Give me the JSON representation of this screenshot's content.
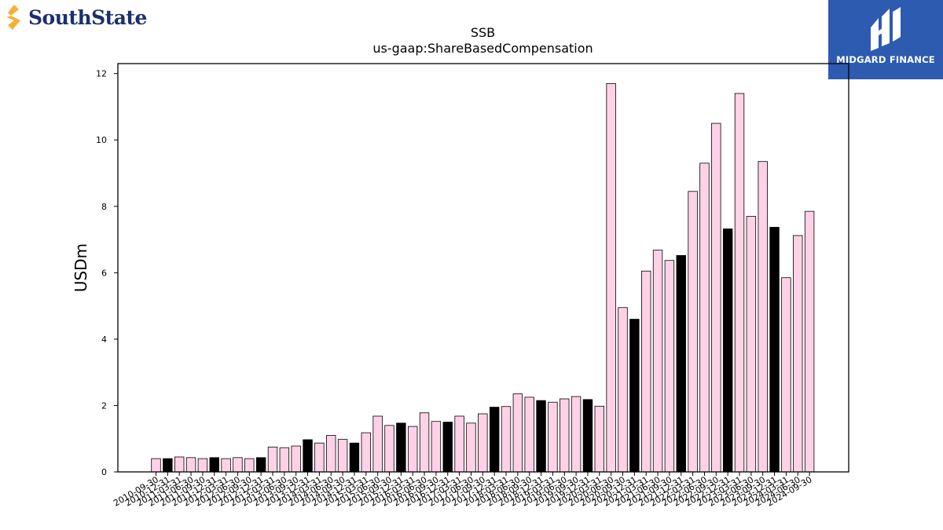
{
  "logos": {
    "left": {
      "name": "SouthState",
      "icon": "southstate-s-icon",
      "color": "#1b2f6e",
      "accent": "#f2b233"
    },
    "right": {
      "name": "MIDGARD FINANCE",
      "icon": "midgard-m-icon",
      "background": "#2d5bb0"
    }
  },
  "chart_data": {
    "type": "bar",
    "title": "SSB",
    "subtitle": "us-gaap:ShareBasedCompensation",
    "xlabel": "",
    "ylabel": "USDm",
    "ylim": [
      0,
      12.3
    ],
    "yticks": [
      0,
      2,
      4,
      6,
      8,
      10,
      12
    ],
    "colors": {
      "quarter": "#ffd1e6",
      "fiscal_q3": "#000000",
      "edge": "#000000"
    },
    "categories": [
      "2010-09-30",
      "2010-12-31",
      "2011-03-31",
      "2011-06-30",
      "2011-09-30",
      "2011-12-31",
      "2012-03-31",
      "2012-06-30",
      "2012-09-30",
      "2012-12-31",
      "2013-03-31",
      "2013-06-30",
      "2013-09-30",
      "2013-12-31",
      "2014-03-31",
      "2014-06-30",
      "2014-09-30",
      "2014-12-31",
      "2015-03-31",
      "2015-06-30",
      "2015-09-30",
      "2015-12-31",
      "2016-03-31",
      "2016-06-30",
      "2016-09-30",
      "2016-12-31",
      "2017-03-31",
      "2017-06-30",
      "2017-09-30",
      "2017-12-31",
      "2018-03-31",
      "2018-06-30",
      "2018-09-30",
      "2018-12-31",
      "2019-03-31",
      "2019-06-30",
      "2019-09-30",
      "2019-12-31",
      "2020-03-31",
      "2020-06-30",
      "2020-09-30",
      "2020-12-31",
      "2021-03-31",
      "2021-06-30",
      "2021-09-30",
      "2021-12-31",
      "2022-03-31",
      "2022-06-30",
      "2022-09-30",
      "2022-12-31",
      "2023-03-31",
      "2023-06-30",
      "2023-09-30",
      "2023-12-31",
      "2024-03-31",
      "2024-06-30",
      "2024-09-30"
    ],
    "values": [
      0.4,
      0.4,
      0.45,
      0.43,
      0.4,
      0.43,
      0.4,
      0.43,
      0.4,
      0.43,
      0.75,
      0.73,
      0.78,
      0.97,
      0.87,
      1.1,
      0.98,
      0.87,
      1.18,
      1.68,
      1.4,
      1.47,
      1.37,
      1.78,
      1.52,
      1.5,
      1.68,
      1.47,
      1.75,
      1.95,
      1.97,
      2.35,
      2.25,
      2.15,
      2.1,
      2.2,
      2.27,
      2.18,
      1.98,
      11.7,
      4.95,
      4.6,
      6.05,
      6.68,
      6.37,
      6.52,
      8.45,
      9.3,
      10.5,
      7.32,
      11.4,
      7.7,
      9.35,
      7.37,
      5.85,
      7.12,
      7.85
    ],
    "highlight": [
      false,
      true,
      false,
      false,
      false,
      true,
      false,
      false,
      false,
      true,
      false,
      false,
      false,
      true,
      false,
      false,
      false,
      true,
      false,
      false,
      false,
      true,
      false,
      false,
      false,
      true,
      false,
      false,
      false,
      true,
      false,
      false,
      false,
      true,
      false,
      false,
      false,
      true,
      false,
      false,
      false,
      true,
      false,
      false,
      false,
      true,
      false,
      false,
      false,
      true,
      false,
      false,
      false,
      true,
      false,
      false,
      false
    ]
  }
}
